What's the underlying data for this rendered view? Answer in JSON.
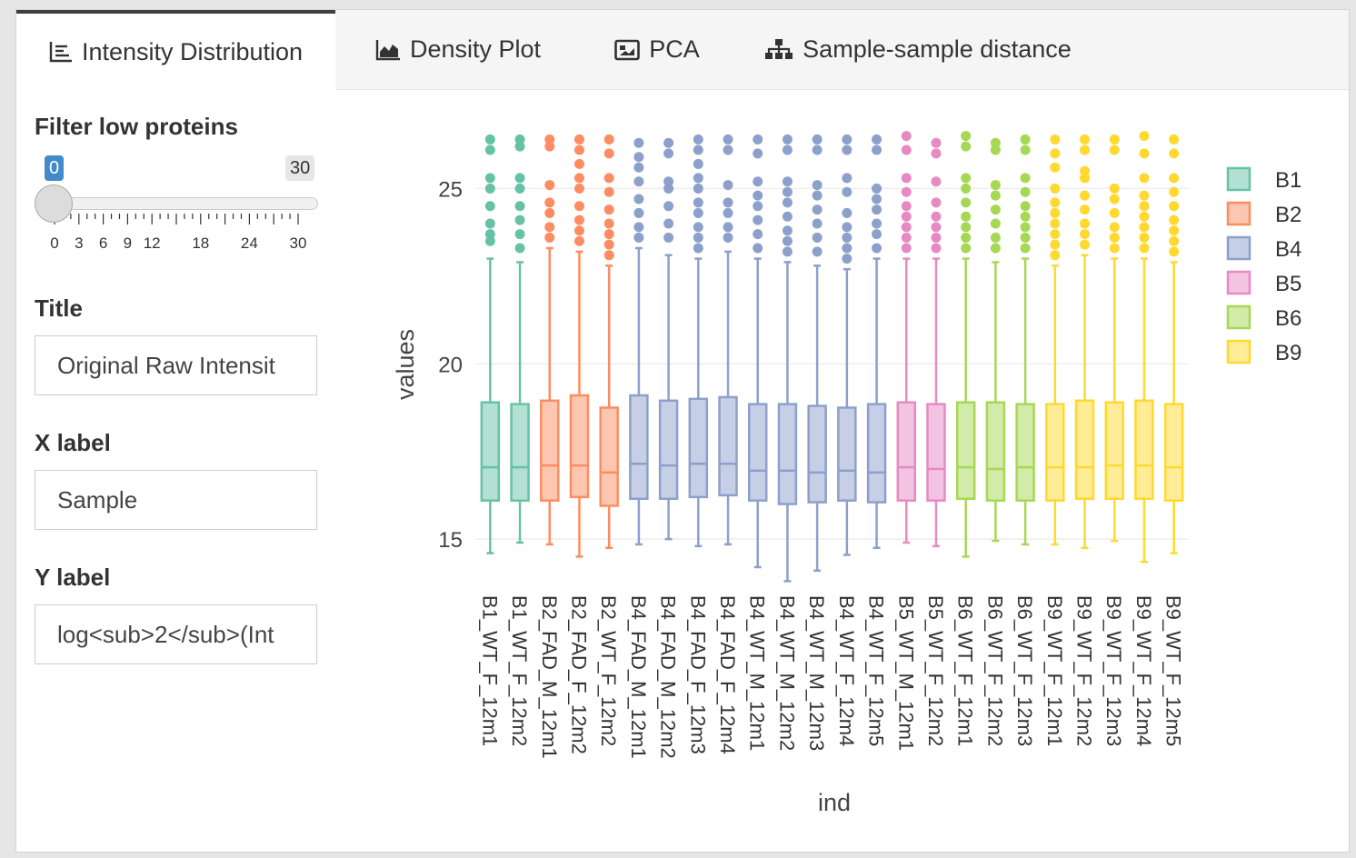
{
  "tabs": [
    {
      "label": "Intensity Distribution",
      "icon": "list-chart-icon",
      "active": true
    },
    {
      "label": "Density Plot",
      "icon": "area-chart-icon",
      "active": false
    },
    {
      "label": "PCA",
      "icon": "image-chart-icon",
      "active": false
    },
    {
      "label": "Sample-sample distance",
      "icon": "sitemap-icon",
      "active": false
    }
  ],
  "sidebar": {
    "filter_label": "Filter low proteins",
    "slider": {
      "min": 0,
      "max": 30,
      "value": 0,
      "min_label": "0",
      "max_label": "30",
      "value_label": "0",
      "tick_labels": [
        "0",
        "3",
        "6",
        "9",
        "12",
        "18",
        "24",
        "30"
      ],
      "accent": "#428bca"
    },
    "title_label": "Title",
    "title_value": "Original Raw Intensit",
    "xlabel_label": "X label",
    "xlabel_value": "Sample",
    "ylabel_label": "Y label",
    "ylabel_value": "log<sub>2</sub>(Int"
  },
  "chart_data": {
    "type": "box",
    "xlabel": "ind",
    "ylabel": "values",
    "ylim": [
      13.5,
      27.5
    ],
    "yticks": [
      15,
      20,
      25
    ],
    "grid": true,
    "legend_position": "top-right",
    "legend": [
      {
        "name": "B1",
        "color": "#66c2a5"
      },
      {
        "name": "B2",
        "color": "#fc8d62"
      },
      {
        "name": "B4",
        "color": "#8da0cb"
      },
      {
        "name": "B5",
        "color": "#e78ac3"
      },
      {
        "name": "B6",
        "color": "#a6d854"
      },
      {
        "name": "B9",
        "color": "#ffd92f"
      }
    ],
    "samples": [
      {
        "name": "B1_WT_F_12m1",
        "group": "B1",
        "low": 14.6,
        "q1": 16.1,
        "median": 17.05,
        "q3": 18.9,
        "high": 23.0,
        "outliers": [
          23.5,
          23.7,
          24.0,
          24.5,
          25.0,
          25.3,
          26.1,
          26.4
        ]
      },
      {
        "name": "B1_WT_F_12m2",
        "group": "B1",
        "low": 14.9,
        "q1": 16.1,
        "median": 17.05,
        "q3": 18.85,
        "high": 22.9,
        "outliers": [
          23.3,
          23.7,
          24.1,
          24.5,
          25.0,
          25.3,
          26.2,
          26.4
        ]
      },
      {
        "name": "B2_FAD_M_12m1",
        "group": "B2",
        "low": 14.85,
        "q1": 16.1,
        "median": 17.1,
        "q3": 18.95,
        "high": 23.3,
        "outliers": [
          23.6,
          23.9,
          24.3,
          24.6,
          25.1,
          26.2,
          26.4
        ]
      },
      {
        "name": "B2_FAD_F_12m2",
        "group": "B2",
        "low": 14.5,
        "q1": 16.2,
        "median": 17.1,
        "q3": 19.1,
        "high": 23.2,
        "outliers": [
          23.5,
          23.8,
          24.1,
          24.5,
          25.0,
          25.3,
          25.7,
          26.1,
          26.4
        ]
      },
      {
        "name": "B2_WT_F_12m2",
        "group": "B2",
        "low": 14.75,
        "q1": 15.95,
        "median": 16.9,
        "q3": 18.75,
        "high": 22.8,
        "outliers": [
          23.1,
          23.4,
          23.7,
          24.0,
          24.4,
          24.9,
          25.3,
          26.0,
          26.4
        ]
      },
      {
        "name": "B4_FAD_M_12m1",
        "group": "B4",
        "low": 14.85,
        "q1": 16.15,
        "median": 17.15,
        "q3": 19.1,
        "high": 23.3,
        "outliers": [
          23.6,
          23.9,
          24.3,
          24.7,
          25.2,
          25.6,
          25.9,
          26.3
        ]
      },
      {
        "name": "B4_FAD_M_12m2",
        "group": "B4",
        "low": 15.0,
        "q1": 16.15,
        "median": 17.1,
        "q3": 18.95,
        "high": 23.1,
        "outliers": [
          23.6,
          24.0,
          24.5,
          25.0,
          25.2,
          26.0,
          26.3
        ]
      },
      {
        "name": "B4_FAD_F_12m3",
        "group": "B4",
        "low": 14.8,
        "q1": 16.2,
        "median": 17.15,
        "q3": 19.0,
        "high": 23.0,
        "outliers": [
          23.3,
          23.6,
          23.9,
          24.3,
          24.6,
          25.0,
          25.3,
          25.7,
          26.1,
          26.4
        ]
      },
      {
        "name": "B4_FAD_F_12m4",
        "group": "B4",
        "low": 14.85,
        "q1": 16.25,
        "median": 17.15,
        "q3": 19.05,
        "high": 23.2,
        "outliers": [
          23.6,
          23.9,
          24.3,
          24.6,
          25.1,
          26.1,
          26.4
        ]
      },
      {
        "name": "B4_WT_M_12m1",
        "group": "B4",
        "low": 14.2,
        "q1": 16.1,
        "median": 16.95,
        "q3": 18.85,
        "high": 23.0,
        "outliers": [
          23.3,
          23.7,
          24.1,
          24.5,
          24.8,
          25.2,
          26.0,
          26.4
        ]
      },
      {
        "name": "B4_WT_M_12m2",
        "group": "B4",
        "low": 13.8,
        "q1": 16.0,
        "median": 16.95,
        "q3": 18.85,
        "high": 22.9,
        "outliers": [
          23.2,
          23.5,
          23.8,
          24.2,
          24.6,
          24.9,
          25.2,
          26.1,
          26.4
        ]
      },
      {
        "name": "B4_WT_M_12m3",
        "group": "B4",
        "low": 14.1,
        "q1": 16.05,
        "median": 16.9,
        "q3": 18.8,
        "high": 22.8,
        "outliers": [
          23.2,
          23.6,
          24.0,
          24.4,
          24.8,
          25.1,
          26.1,
          26.4
        ]
      },
      {
        "name": "B4_WT_F_12m4",
        "group": "B4",
        "low": 14.55,
        "q1": 16.1,
        "median": 16.95,
        "q3": 18.75,
        "high": 22.7,
        "outliers": [
          23.0,
          23.3,
          23.6,
          23.9,
          24.3,
          24.9,
          25.3,
          26.1,
          26.4
        ]
      },
      {
        "name": "B4_WT_F_12m5",
        "group": "B4",
        "low": 14.75,
        "q1": 16.05,
        "median": 16.9,
        "q3": 18.85,
        "high": 23.0,
        "outliers": [
          23.3,
          23.7,
          24.0,
          24.4,
          24.7,
          25.0,
          26.1,
          26.4
        ]
      },
      {
        "name": "B5_WT_M_12m1",
        "group": "B5",
        "low": 14.9,
        "q1": 16.1,
        "median": 17.05,
        "q3": 18.9,
        "high": 23.0,
        "outliers": [
          23.3,
          23.6,
          23.9,
          24.2,
          24.5,
          24.9,
          25.3,
          26.1,
          26.5
        ]
      },
      {
        "name": "B5_WT_F_12m2",
        "group": "B5",
        "low": 14.8,
        "q1": 16.1,
        "median": 17.0,
        "q3": 18.85,
        "high": 23.0,
        "outliers": [
          23.3,
          23.6,
          23.9,
          24.2,
          24.6,
          25.2,
          26.0,
          26.3
        ]
      },
      {
        "name": "B6_WT_F_12m1",
        "group": "B6",
        "low": 14.5,
        "q1": 16.15,
        "median": 17.05,
        "q3": 18.9,
        "high": 23.0,
        "outliers": [
          23.3,
          23.6,
          23.9,
          24.2,
          24.6,
          25.0,
          25.3,
          26.2,
          26.5
        ]
      },
      {
        "name": "B6_WT_F_12m2",
        "group": "B6",
        "low": 14.95,
        "q1": 16.1,
        "median": 17.0,
        "q3": 18.9,
        "high": 22.9,
        "outliers": [
          23.3,
          23.6,
          24.0,
          24.4,
          24.8,
          25.1,
          26.1,
          26.3
        ]
      },
      {
        "name": "B6_WT_F_12m3",
        "group": "B6",
        "low": 14.85,
        "q1": 16.1,
        "median": 17.05,
        "q3": 18.85,
        "high": 23.0,
        "outliers": [
          23.3,
          23.6,
          23.9,
          24.2,
          24.5,
          24.9,
          25.3,
          26.1,
          26.4
        ]
      },
      {
        "name": "B9_WT_F_12m1",
        "group": "B9",
        "low": 14.85,
        "q1": 16.1,
        "median": 17.05,
        "q3": 18.85,
        "high": 22.8,
        "outliers": [
          23.1,
          23.4,
          23.7,
          24.0,
          24.3,
          24.6,
          25.0,
          25.6,
          26.0,
          26.4
        ]
      },
      {
        "name": "B9_WT_F_12m2",
        "group": "B9",
        "low": 14.75,
        "q1": 16.15,
        "median": 17.05,
        "q3": 18.95,
        "high": 23.1,
        "outliers": [
          23.4,
          23.7,
          24.0,
          24.4,
          24.8,
          25.3,
          25.5,
          26.1,
          26.4
        ]
      },
      {
        "name": "B9_WT_F_12m3",
        "group": "B9",
        "low": 14.95,
        "q1": 16.15,
        "median": 17.1,
        "q3": 18.9,
        "high": 23.0,
        "outliers": [
          23.3,
          23.6,
          23.9,
          24.3,
          24.7,
          25.0,
          26.1,
          26.4
        ]
      },
      {
        "name": "B9_WT_F_12m4",
        "group": "B9",
        "low": 14.35,
        "q1": 16.15,
        "median": 17.1,
        "q3": 18.95,
        "high": 23.0,
        "outliers": [
          23.3,
          23.6,
          23.9,
          24.2,
          24.5,
          24.8,
          25.3,
          26.0,
          26.5
        ]
      },
      {
        "name": "B9_WT_F_12m5",
        "group": "B9",
        "low": 14.6,
        "q1": 16.1,
        "median": 17.05,
        "q3": 18.85,
        "high": 22.9,
        "outliers": [
          23.2,
          23.5,
          23.8,
          24.1,
          24.5,
          24.9,
          25.3,
          26.0,
          26.4
        ]
      }
    ]
  }
}
